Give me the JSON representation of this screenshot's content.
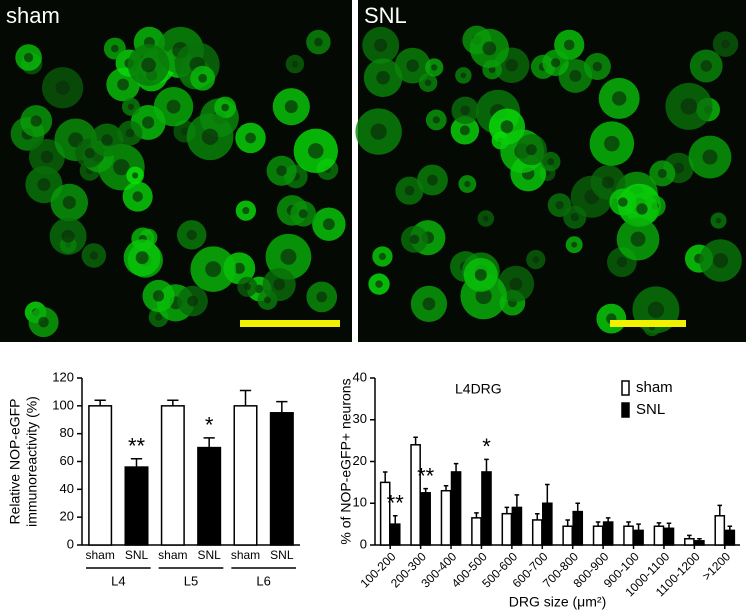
{
  "images": [
    {
      "label": "sham"
    },
    {
      "label": "SNL"
    }
  ],
  "chart_data": [
    {
      "type": "bar",
      "ylabel": [
        "Relative NOP-eGFP",
        "immunoreactivity (%)"
      ],
      "categories": [
        "sham",
        "SNL",
        "sham",
        "SNL",
        "sham",
        "SNL"
      ],
      "groups": [
        "L4",
        "L5",
        "L6"
      ],
      "values": [
        100,
        56,
        100,
        70,
        100,
        95
      ],
      "errors": [
        4,
        6,
        4,
        7,
        11,
        8
      ],
      "colors": [
        "#ffffff",
        "#000000",
        "#ffffff",
        "#000000",
        "#ffffff",
        "#000000"
      ],
      "significance": [
        null,
        "**",
        null,
        "*",
        null,
        null
      ],
      "ylim": [
        0,
        120
      ],
      "yticks": [
        0,
        20,
        40,
        60,
        80,
        100,
        120
      ]
    },
    {
      "type": "bar",
      "title": "L4DRG",
      "ylabel": "% of NOP-eGFP+ neurons",
      "xlabel": "DRG size (μm²)",
      "categories": [
        "100-200",
        "200-300",
        "300-400",
        "400-500",
        "500-600",
        "600-700",
        "700-800",
        "800-900",
        "900-100",
        "1000-1100",
        "1100-1200",
        ">1200"
      ],
      "series": [
        {
          "name": "sham",
          "color": "#ffffff",
          "values": [
            15,
            24,
            13,
            6.5,
            7.5,
            6,
            4.5,
            4.5,
            4.5,
            4.5,
            1.5,
            7
          ],
          "errors": [
            2.5,
            1.8,
            1.2,
            1.2,
            1.5,
            1.5,
            1.5,
            1,
            1,
            0.8,
            0.8,
            2.5
          ],
          "significance": [
            null,
            null,
            null,
            null,
            null,
            null,
            null,
            null,
            null,
            null,
            null,
            null
          ]
        },
        {
          "name": "SNL",
          "color": "#000000",
          "values": [
            5,
            12.5,
            17.5,
            17.5,
            9,
            10,
            8,
            5.5,
            3.5,
            4,
            1,
            3.5
          ],
          "errors": [
            2,
            1,
            2,
            3,
            3,
            4.5,
            2,
            1,
            1.5,
            1.2,
            0.5,
            1
          ],
          "significance": [
            "**",
            "**",
            null,
            "*",
            null,
            null,
            null,
            null,
            null,
            null,
            null,
            null
          ]
        }
      ],
      "ylim": [
        0,
        40
      ],
      "yticks": [
        0,
        10,
        20,
        30,
        40
      ],
      "legend": "top-right"
    }
  ]
}
